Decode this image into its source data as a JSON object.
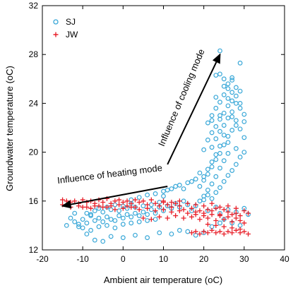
{
  "chart_data": {
    "type": "scatter",
    "xlabel": "Ambient air temperature (oC)",
    "ylabel": "Groundwater temperature (oC)",
    "xlim": [
      -20,
      40
    ],
    "ylim": [
      12,
      32
    ],
    "xticks": [
      -20,
      -10,
      0,
      10,
      20,
      30,
      40
    ],
    "yticks": [
      12,
      16,
      20,
      24,
      28,
      32
    ],
    "xtick_labels": [
      "-20",
      "-10",
      "0",
      "10",
      "20",
      "30",
      "40"
    ],
    "ytick_labels": [
      "12",
      "16",
      "20",
      "24",
      "28",
      "32"
    ],
    "legend_position": "top-left",
    "series": [
      {
        "name": "SJ",
        "marker": "open-circle",
        "color": "#3aa8d8",
        "points": [
          [
            -13,
            14.6
          ],
          [
            -12,
            14.3
          ],
          [
            -11,
            14.1
          ],
          [
            -10,
            14.5
          ],
          [
            -9,
            14.2
          ],
          [
            -8,
            14.8
          ],
          [
            -7,
            14.4
          ],
          [
            -6,
            14.6
          ],
          [
            -5,
            14.3
          ],
          [
            -4,
            14.7
          ],
          [
            -3,
            14.5
          ],
          [
            -2,
            14.4
          ],
          [
            -1,
            14.8
          ],
          [
            0,
            14.6
          ],
          [
            1,
            14.9
          ],
          [
            2,
            14.7
          ],
          [
            3,
            15.0
          ],
          [
            4,
            14.8
          ],
          [
            5,
            15.1
          ],
          [
            6,
            14.9
          ],
          [
            7,
            15.3
          ],
          [
            8,
            15.0
          ],
          [
            9,
            15.5
          ],
          [
            10,
            15.2
          ],
          [
            11,
            15.6
          ],
          [
            12,
            15.4
          ],
          [
            13,
            15.8
          ],
          [
            14,
            15.5
          ],
          [
            15,
            16.0
          ],
          [
            16,
            15.7
          ],
          [
            -10,
            13.8
          ],
          [
            -8,
            13.6
          ],
          [
            -6,
            13.9
          ],
          [
            -4,
            14.0
          ],
          [
            -2,
            13.8
          ],
          [
            0,
            14.1
          ],
          [
            2,
            14.2
          ],
          [
            4,
            14.3
          ],
          [
            6,
            14.4
          ],
          [
            8,
            14.5
          ],
          [
            -9,
            15.0
          ],
          [
            -7,
            15.2
          ],
          [
            -5,
            15.1
          ],
          [
            -3,
            15.3
          ],
          [
            -1,
            15.2
          ],
          [
            1,
            15.4
          ],
          [
            3,
            15.5
          ],
          [
            5,
            15.6
          ],
          [
            7,
            15.7
          ],
          [
            9,
            15.9
          ],
          [
            -7,
            12.8
          ],
          [
            -5,
            12.7
          ],
          [
            -3,
            13.1
          ],
          [
            0,
            13.0
          ],
          [
            3,
            13.2
          ],
          [
            6,
            13.0
          ],
          [
            9,
            13.4
          ],
          [
            12,
            13.3
          ],
          [
            14,
            13.6
          ],
          [
            16,
            13.5
          ],
          [
            18,
            13.2
          ],
          [
            20,
            13.4
          ],
          [
            22,
            13.9
          ],
          [
            24,
            14.2
          ],
          [
            2,
            16.1
          ],
          [
            4,
            16.3
          ],
          [
            6,
            16.5
          ],
          [
            8,
            16.6
          ],
          [
            10,
            16.8
          ],
          [
            12,
            17.0
          ],
          [
            14,
            17.3
          ],
          [
            16,
            17.5
          ],
          [
            18,
            17.8
          ],
          [
            20,
            18.0
          ],
          [
            10,
            16.4
          ],
          [
            11,
            16.9
          ],
          [
            13,
            17.2
          ],
          [
            15,
            17.0
          ],
          [
            17,
            17.6
          ],
          [
            19,
            18.3
          ],
          [
            21,
            18.6
          ],
          [
            22,
            19.2
          ],
          [
            23,
            19.8
          ],
          [
            24,
            20.5
          ],
          [
            17,
            15.2
          ],
          [
            18,
            15.6
          ],
          [
            19,
            16.0
          ],
          [
            20,
            16.4
          ],
          [
            21,
            16.9
          ],
          [
            22,
            17.4
          ],
          [
            23,
            18.0
          ],
          [
            24,
            18.7
          ],
          [
            25,
            19.3
          ],
          [
            26,
            19.9
          ],
          [
            20,
            20.2
          ],
          [
            21,
            21.0
          ],
          [
            22,
            21.6
          ],
          [
            23,
            22.1
          ],
          [
            24,
            22.7
          ],
          [
            25,
            23.2
          ],
          [
            26,
            23.8
          ],
          [
            27,
            24.2
          ],
          [
            28,
            24.6
          ],
          [
            29,
            25.0
          ],
          [
            21,
            22.4
          ],
          [
            22,
            23.0
          ],
          [
            23,
            23.6
          ],
          [
            24,
            24.1
          ],
          [
            25,
            24.7
          ],
          [
            26,
            25.2
          ],
          [
            27,
            25.9
          ],
          [
            28,
            25.3
          ],
          [
            29,
            24.0
          ],
          [
            30,
            23.1
          ],
          [
            22,
            20.4
          ],
          [
            23,
            21.1
          ],
          [
            24,
            21.7
          ],
          [
            25,
            22.2
          ],
          [
            26,
            22.8
          ],
          [
            27,
            23.3
          ],
          [
            28,
            22.6
          ],
          [
            29,
            21.9
          ],
          [
            30,
            21.2
          ],
          [
            28,
            20.3
          ],
          [
            23,
            26.3
          ],
          [
            24,
            26.4
          ],
          [
            25,
            26.0
          ],
          [
            26,
            25.6
          ],
          [
            27,
            26.1
          ],
          [
            24,
            28.3
          ],
          [
            29,
            27.3
          ],
          [
            26,
            24.4
          ],
          [
            25,
            25.4
          ],
          [
            27,
            24.9
          ],
          [
            19,
            17.2
          ],
          [
            20,
            17.7
          ],
          [
            21,
            18.2
          ],
          [
            22,
            18.8
          ],
          [
            23,
            19.4
          ],
          [
            24,
            19.9
          ],
          [
            25,
            20.6
          ],
          [
            26,
            21.3
          ],
          [
            27,
            21.8
          ],
          [
            28,
            22.2
          ],
          [
            20,
            16.1
          ],
          [
            21,
            16.5
          ],
          [
            22,
            16.2
          ],
          [
            23,
            16.7
          ],
          [
            24,
            17.1
          ],
          [
            25,
            17.6
          ],
          [
            26,
            18.1
          ],
          [
            27,
            18.5
          ],
          [
            28,
            19.0
          ],
          [
            29,
            19.6
          ],
          [
            30,
            20.0
          ],
          [
            30,
            22.5
          ],
          [
            29,
            23.6
          ],
          [
            28,
            24.0
          ],
          [
            27,
            22.9
          ],
          [
            26,
            20.8
          ],
          [
            25,
            21.4
          ],
          [
            24,
            23.0
          ],
          [
            23,
            24.5
          ],
          [
            22,
            22.6
          ],
          [
            24,
            15.0
          ],
          [
            26,
            15.3
          ],
          [
            28,
            15.1
          ],
          [
            30,
            15.4
          ],
          [
            31,
            14.9
          ],
          [
            25,
            14.5
          ],
          [
            27,
            14.2
          ],
          [
            29,
            14.0
          ],
          [
            23,
            15.5
          ],
          [
            21,
            15.2
          ],
          [
            -14,
            14.0
          ],
          [
            -12,
            15.0
          ],
          [
            -11,
            13.9
          ],
          [
            -9,
            13.3
          ],
          [
            -8,
            14.9
          ],
          [
            -6,
            15.4
          ],
          [
            -4,
            15.5
          ],
          [
            -2,
            15.7
          ],
          [
            0,
            15.6
          ],
          [
            2,
            15.8
          ]
        ]
      },
      {
        "name": "JW",
        "marker": "plus",
        "color": "#e8202a",
        "points": [
          [
            -15,
            16.1
          ],
          [
            -14,
            16.0
          ],
          [
            -13,
            15.9
          ],
          [
            -12,
            16.0
          ],
          [
            -11,
            15.8
          ],
          [
            -10,
            16.1
          ],
          [
            -9,
            15.9
          ],
          [
            -8,
            16.0
          ],
          [
            -7,
            15.8
          ],
          [
            -6,
            16.1
          ],
          [
            -5,
            15.9
          ],
          [
            -4,
            16.2
          ],
          [
            -3,
            15.8
          ],
          [
            -2,
            16.0
          ],
          [
            -1,
            16.1
          ],
          [
            0,
            15.9
          ],
          [
            1,
            16.0
          ],
          [
            2,
            15.8
          ],
          [
            3,
            16.1
          ],
          [
            4,
            15.9
          ],
          [
            5,
            16.0
          ],
          [
            6,
            15.7
          ],
          [
            7,
            16.1
          ],
          [
            8,
            15.8
          ],
          [
            9,
            15.6
          ],
          [
            10,
            15.9
          ],
          [
            11,
            15.7
          ],
          [
            12,
            15.5
          ],
          [
            13,
            15.8
          ],
          [
            14,
            15.6
          ],
          [
            -10,
            15.5
          ],
          [
            -8,
            15.4
          ],
          [
            -6,
            15.6
          ],
          [
            -4,
            15.5
          ],
          [
            -2,
            15.3
          ],
          [
            0,
            15.4
          ],
          [
            2,
            15.5
          ],
          [
            4,
            15.3
          ],
          [
            6,
            15.4
          ],
          [
            8,
            15.2
          ],
          [
            10,
            15.3
          ],
          [
            12,
            15.1
          ],
          [
            14,
            15.2
          ],
          [
            16,
            15.0
          ],
          [
            18,
            15.1
          ],
          [
            20,
            15.0
          ],
          [
            22,
            15.2
          ],
          [
            24,
            14.9
          ],
          [
            26,
            15.1
          ],
          [
            28,
            15.0
          ],
          [
            30,
            15.2
          ],
          [
            31,
            15.0
          ],
          [
            29,
            14.8
          ],
          [
            27,
            14.9
          ],
          [
            25,
            15.3
          ],
          [
            23,
            15.4
          ],
          [
            21,
            15.3
          ],
          [
            19,
            15.2
          ],
          [
            17,
            15.4
          ],
          [
            15,
            15.3
          ],
          [
            5,
            14.6
          ],
          [
            7,
            14.5
          ],
          [
            9,
            14.7
          ],
          [
            11,
            14.6
          ],
          [
            13,
            14.8
          ],
          [
            15,
            14.6
          ],
          [
            17,
            14.7
          ],
          [
            19,
            14.5
          ],
          [
            21,
            14.6
          ],
          [
            23,
            14.4
          ],
          [
            25,
            14.5
          ],
          [
            27,
            14.3
          ],
          [
            29,
            14.4
          ],
          [
            30,
            14.2
          ],
          [
            28,
            14.6
          ],
          [
            26,
            14.7
          ],
          [
            24,
            14.8
          ],
          [
            22,
            14.9
          ],
          [
            20,
            14.8
          ],
          [
            18,
            14.9
          ],
          [
            17,
            13.4
          ],
          [
            18,
            13.5
          ],
          [
            19,
            13.3
          ],
          [
            20,
            13.5
          ],
          [
            21,
            13.4
          ],
          [
            22,
            13.6
          ],
          [
            23,
            13.4
          ],
          [
            24,
            13.5
          ],
          [
            25,
            13.3
          ],
          [
            26,
            13.5
          ],
          [
            27,
            13.4
          ],
          [
            28,
            13.6
          ],
          [
            29,
            13.4
          ],
          [
            30,
            13.5
          ],
          [
            31,
            13.3
          ],
          [
            29,
            13.7
          ],
          [
            27,
            13.8
          ],
          [
            25,
            13.9
          ],
          [
            23,
            14.0
          ],
          [
            21,
            14.1
          ],
          [
            -15,
            15.7
          ],
          [
            -13,
            15.5
          ],
          [
            -11,
            15.6
          ],
          [
            -9,
            15.5
          ],
          [
            -7,
            15.6
          ],
          [
            -5,
            15.5
          ],
          [
            -3,
            15.6
          ],
          [
            -1,
            15.7
          ],
          [
            1,
            15.6
          ],
          [
            3,
            15.5
          ],
          [
            10,
            16.0
          ],
          [
            12,
            15.9
          ],
          [
            14,
            16.0
          ],
          [
            16,
            15.8
          ],
          [
            18,
            15.7
          ],
          [
            20,
            15.6
          ],
          [
            22,
            15.8
          ],
          [
            24,
            15.5
          ],
          [
            26,
            15.6
          ],
          [
            28,
            15.4
          ]
        ]
      }
    ],
    "annotations": [
      {
        "text": "Influence of heating mode",
        "x_from": 11,
        "y_from": 17.2,
        "x_to": -15,
        "y_to": 15.6
      },
      {
        "text": "Influence of cooling mode",
        "x_from": 11,
        "y_from": 19.0,
        "x_to": 24,
        "y_to": 28.0
      }
    ]
  }
}
